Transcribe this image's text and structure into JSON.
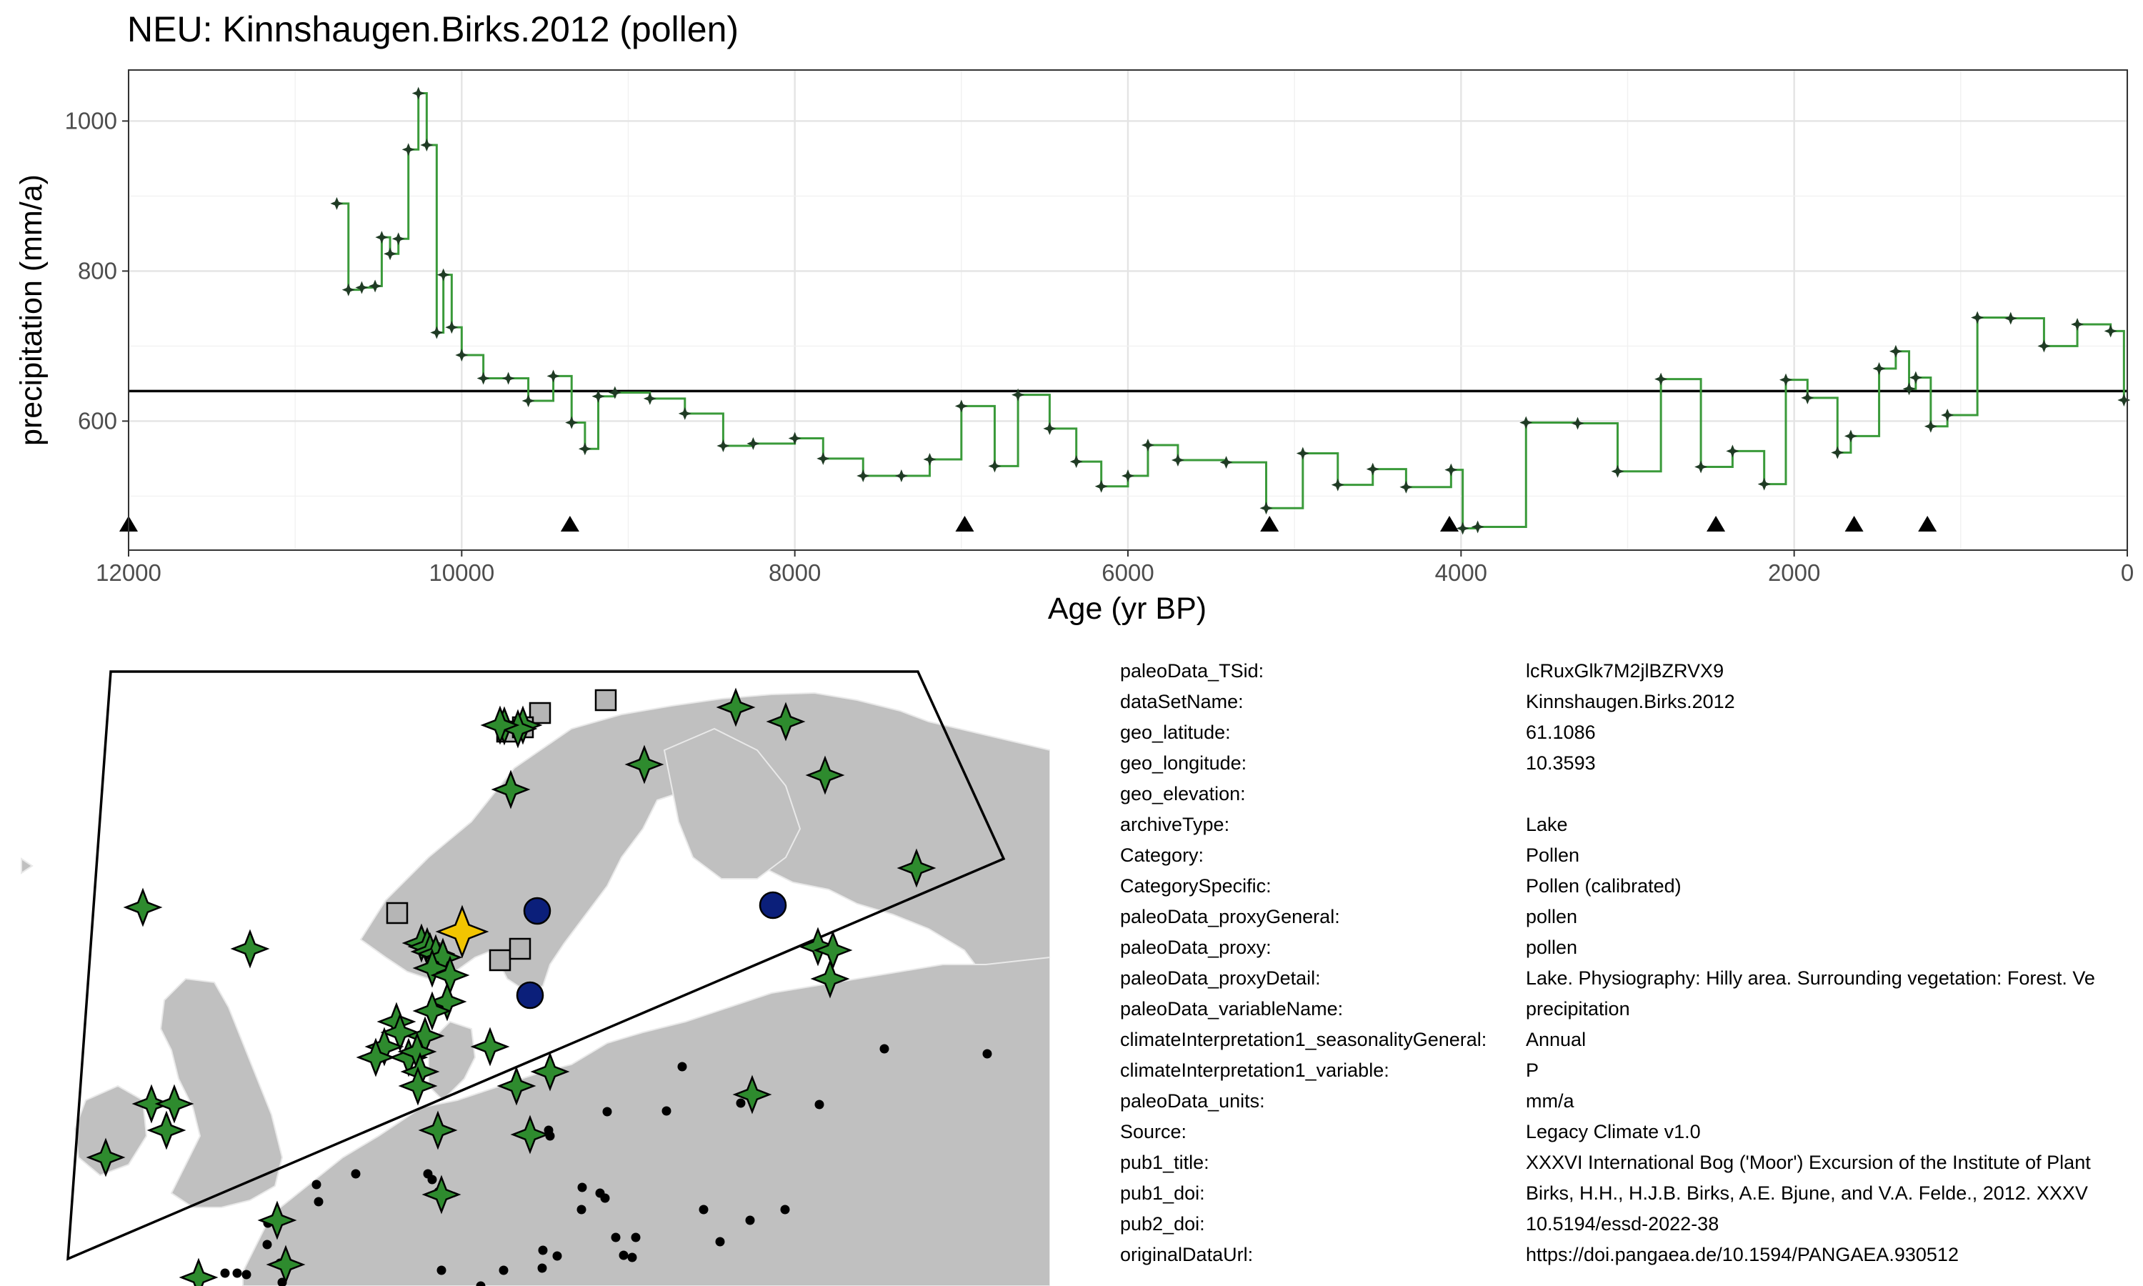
{
  "chart_data": {
    "type": "line",
    "step": true,
    "title": "NEU: Kinnshaugen.Birks.2012 (pollen)",
    "xlabel": "Age (yr BP)",
    "ylabel": "precipitation (mm/a)",
    "xlim": [
      12000,
      0
    ],
    "ylim": [
      428,
      1068
    ],
    "x_reversed": true,
    "grid": true,
    "x_ticks": [
      12000,
      10000,
      8000,
      6000,
      4000,
      2000,
      0
    ],
    "y_ticks": [
      600,
      800,
      1000
    ],
    "reference_line": 640,
    "line_color": "#3a9a3a",
    "point_color": "#1f3b24",
    "chronology_markers": [
      12000,
      9350,
      6980,
      5150,
      4070,
      2470,
      1640,
      1200
    ],
    "series": [
      {
        "x": [
          10750,
          10680,
          10600,
          10520,
          10480,
          10430,
          10380,
          10320,
          10260,
          10210,
          10150,
          10110,
          10060,
          10000,
          9870,
          9720,
          9600,
          9450,
          9340,
          9260,
          9180,
          9080,
          8870,
          8660,
          8430,
          8250,
          8000,
          7830,
          7590,
          7360,
          7190,
          7000,
          6800,
          6660,
          6470,
          6310,
          6160,
          6000,
          5880,
          5700,
          5410,
          5170,
          4950,
          4740,
          4530,
          4330,
          4060,
          3990,
          3900,
          3610,
          3300,
          3060,
          2800,
          2560,
          2370,
          2180,
          2050,
          1920,
          1740,
          1660,
          1490,
          1390,
          1310,
          1270,
          1180,
          1080,
          900,
          700,
          500,
          300,
          100,
          20
        ],
        "y": [
          890,
          775,
          778,
          780,
          845,
          823,
          843,
          962,
          1037,
          968,
          718,
          795,
          725,
          688,
          657,
          657,
          627,
          660,
          598,
          563,
          633,
          638,
          630,
          610,
          567,
          570,
          577,
          550,
          527,
          527,
          549,
          620,
          540,
          635,
          590,
          546,
          513,
          527,
          568,
          548,
          545,
          484,
          557,
          515,
          536,
          512,
          535,
          457,
          459,
          598,
          597,
          533,
          656,
          539,
          560,
          516,
          655,
          631,
          558,
          580,
          670,
          693,
          643,
          658,
          593,
          608,
          738,
          737,
          700,
          729,
          720,
          628
        ]
      }
    ]
  },
  "map": {
    "marker_colors": {
      "land": "#c0c0c0",
      "pollen_star": "#2e8b2e",
      "selected_star": "#f2c500",
      "circle": "#0b1f7a",
      "square": "#b5b5b5",
      "dot": "#000000"
    }
  },
  "metadata": [
    {
      "key": "paleoData_TSid:",
      "value": "lcRuxGlk7M2jlBZRVX9"
    },
    {
      "key": "dataSetName:",
      "value": "Kinnshaugen.Birks.2012"
    },
    {
      "key": "geo_latitude:",
      "value": "61.1086"
    },
    {
      "key": "geo_longitude:",
      "value": "10.3593"
    },
    {
      "key": "geo_elevation:",
      "value": ""
    },
    {
      "key": "archiveType:",
      "value": "Lake"
    },
    {
      "key": "Category:",
      "value": "Pollen"
    },
    {
      "key": "CategorySpecific:",
      "value": "Pollen (calibrated)"
    },
    {
      "key": "paleoData_proxyGeneral:",
      "value": "pollen"
    },
    {
      "key": "paleoData_proxy:",
      "value": "pollen"
    },
    {
      "key": "paleoData_proxyDetail:",
      "value": "Lake. Physiography: Hilly area. Surrounding vegetation: Forest. Ve"
    },
    {
      "key": "paleoData_variableName:",
      "value": "precipitation"
    },
    {
      "key": "climateInterpretation1_seasonalityGeneral:",
      "value": "Annual"
    },
    {
      "key": "climateInterpretation1_variable:",
      "value": "P"
    },
    {
      "key": "paleoData_units:",
      "value": "mm/a"
    },
    {
      "key": "Source:",
      "value": "Legacy Climate v1.0"
    },
    {
      "key": "pub1_title:",
      "value": "XXXVI International Bog ('Moor') Excursion of the Institute of Plant"
    },
    {
      "key": "pub1_doi:",
      "value": "Birks, H.H., H.J.B. Birks, A.E. Bjune, and V.A. Felde., 2012. XXXV"
    },
    {
      "key": "pub2_doi:",
      "value": "10.5194/essd-2022-38"
    },
    {
      "key": "originalDataUrl:",
      "value": "https://doi.pangaea.de/10.1594/PANGAEA.930512"
    }
  ]
}
